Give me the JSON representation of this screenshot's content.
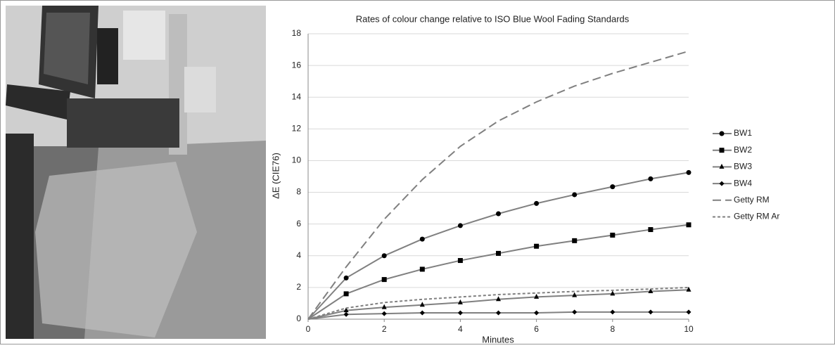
{
  "chart_data": {
    "type": "line",
    "title": "Rates of colour change relative to ISO Blue Wool Fading Standards",
    "x_label": "Minutes",
    "y_label": "ΔE (CIE76)",
    "x": [
      0,
      1,
      2,
      3,
      4,
      5,
      6,
      7,
      8,
      9,
      10
    ],
    "xlim": [
      0,
      10
    ],
    "xticks": [
      0,
      2,
      4,
      6,
      8,
      10
    ],
    "ylim": [
      0,
      18
    ],
    "yticks": [
      0,
      2,
      4,
      6,
      8,
      10,
      12,
      14,
      16,
      18
    ],
    "grid": true,
    "legend": "right",
    "series": [
      {
        "name": "BW1",
        "color": "#808080",
        "marker": "circle",
        "marker_color": "#000000",
        "dash": "solid",
        "values": [
          0,
          2.6,
          4.0,
          5.05,
          5.9,
          6.65,
          7.3,
          7.85,
          8.35,
          8.85,
          9.25
        ]
      },
      {
        "name": "BW2",
        "color": "#808080",
        "marker": "square",
        "marker_color": "#000000",
        "dash": "solid",
        "values": [
          0,
          1.6,
          2.5,
          3.15,
          3.7,
          4.15,
          4.6,
          4.95,
          5.3,
          5.65,
          5.95
        ]
      },
      {
        "name": "BW3",
        "color": "#808080",
        "marker": "triangle",
        "marker_color": "#000000",
        "dash": "solid",
        "values": [
          0,
          0.55,
          0.75,
          0.9,
          1.05,
          1.25,
          1.4,
          1.5,
          1.6,
          1.75,
          1.85
        ]
      },
      {
        "name": "BW4",
        "color": "#808080",
        "marker": "diamond",
        "marker_color": "#000000",
        "dash": "solid",
        "values": [
          0,
          0.3,
          0.35,
          0.4,
          0.4,
          0.4,
          0.4,
          0.45,
          0.45,
          0.45,
          0.45
        ]
      },
      {
        "name": "Getty RM",
        "color": "#808080",
        "marker": "none",
        "marker_color": "#000000",
        "dash": "long",
        "values": [
          0,
          3.3,
          6.3,
          8.8,
          10.9,
          12.5,
          13.7,
          14.7,
          15.5,
          16.2,
          16.9
        ]
      },
      {
        "name": "Getty RM Ar",
        "color": "#808080",
        "marker": "none",
        "marker_color": "#000000",
        "dash": "short",
        "values": [
          0,
          0.7,
          1.05,
          1.25,
          1.4,
          1.55,
          1.65,
          1.75,
          1.82,
          1.9,
          2.0
        ]
      }
    ]
  }
}
